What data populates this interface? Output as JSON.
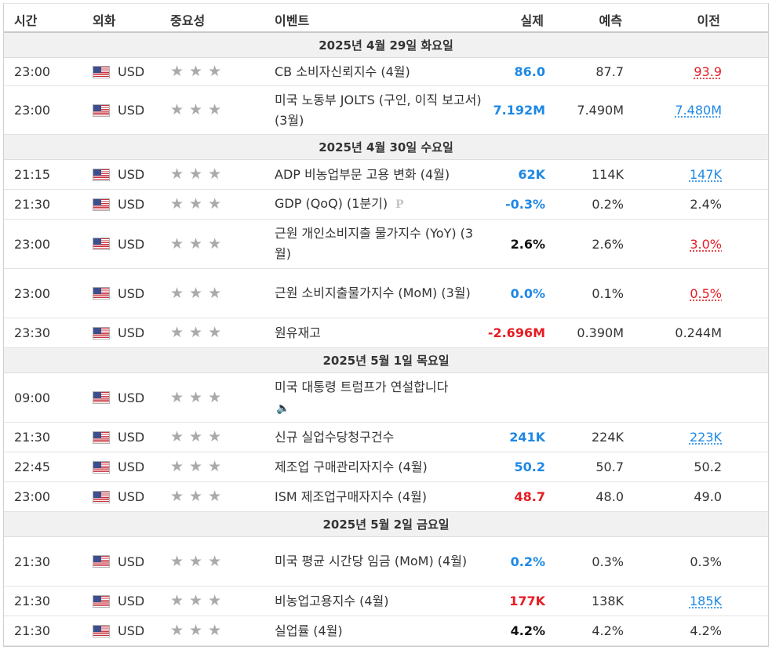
{
  "headers": {
    "time": "시간",
    "currency": "외화",
    "importance": "중요성",
    "event": "이벤트",
    "actual": "실제",
    "forecast": "예측",
    "previous": "이전"
  },
  "colors": {
    "positive": "#1e88e5",
    "negative": "#e51c23",
    "neutral": "#111111"
  },
  "days": [
    {
      "label": "2025년 4월 29일 화요일",
      "rows": [
        {
          "time": "23:00",
          "currency": "USD",
          "stars": 3,
          "event": "CB 소비자신뢰지수 (4월)",
          "actual": "86.0",
          "actual_color": "blue",
          "forecast": "87.7",
          "previous": "93.9",
          "previous_style": "und-red"
        },
        {
          "time": "23:00",
          "currency": "USD",
          "stars": 3,
          "event": "미국 노동부 JOLTS (구인, 이직 보고서) (3월)",
          "actual": "7.192M",
          "actual_color": "blue",
          "forecast": "7.490M",
          "previous": "7.480M",
          "previous_style": "und-blue"
        }
      ]
    },
    {
      "label": "2025년 4월 30일 수요일",
      "rows": [
        {
          "time": "21:15",
          "currency": "USD",
          "stars": 3,
          "event": "ADP 비농업부문 고용 변화 (4월)",
          "actual": "62K",
          "actual_color": "blue",
          "forecast": "114K",
          "previous": "147K",
          "previous_style": "und-blue"
        },
        {
          "time": "21:30",
          "currency": "USD",
          "stars": 3,
          "event": "GDP (QoQ) (1분기)",
          "badge": "P",
          "actual": "-0.3%",
          "actual_color": "blue",
          "forecast": "0.2%",
          "previous": "2.4%",
          "previous_style": "plain"
        },
        {
          "time": "23:00",
          "currency": "USD",
          "stars": 3,
          "event": "근원 개인소비지출 물가지수 (YoY) (3월)",
          "actual": "2.6%",
          "actual_color": "black",
          "forecast": "2.6%",
          "previous": "3.0%",
          "previous_style": "und-red"
        },
        {
          "time": "23:00",
          "currency": "USD",
          "stars": 3,
          "event": "근원 소비지출물가지수 (MoM) (3월)",
          "actual": "0.0%",
          "actual_color": "blue",
          "forecast": "0.1%",
          "previous": "0.5%",
          "previous_style": "und-red"
        },
        {
          "time": "23:30",
          "currency": "USD",
          "stars": 3,
          "event": "원유재고",
          "actual": "-2.696M",
          "actual_color": "red",
          "forecast": "0.390M",
          "previous": "0.244M",
          "previous_style": "plain"
        }
      ]
    },
    {
      "label": "2025년 5월 1일 목요일",
      "rows": [
        {
          "time": "09:00",
          "currency": "USD",
          "stars": 3,
          "event": "미국 대통령 트럼프가 연설합니다",
          "speaker": true,
          "actual": "",
          "actual_color": "black",
          "forecast": "",
          "previous": "",
          "previous_style": "plain"
        },
        {
          "time": "21:30",
          "currency": "USD",
          "stars": 3,
          "event": "신규 실업수당청구건수",
          "actual": "241K",
          "actual_color": "blue",
          "forecast": "224K",
          "previous": "223K",
          "previous_style": "und-blue"
        },
        {
          "time": "22:45",
          "currency": "USD",
          "stars": 3,
          "event": "제조업 구매관리자지수 (4월)",
          "actual": "50.2",
          "actual_color": "blue",
          "forecast": "50.7",
          "previous": "50.2",
          "previous_style": "plain"
        },
        {
          "time": "23:00",
          "currency": "USD",
          "stars": 3,
          "event": "ISM 제조업구매자지수 (4월)",
          "actual": "48.7",
          "actual_color": "red",
          "forecast": "48.0",
          "previous": "49.0",
          "previous_style": "plain"
        }
      ]
    },
    {
      "label": "2025년 5월 2일 금요일",
      "rows": [
        {
          "time": "21:30",
          "currency": "USD",
          "stars": 3,
          "event": "미국 평균 시간당 임금 (MoM) (4월)",
          "actual": "0.2%",
          "actual_color": "blue",
          "forecast": "0.3%",
          "previous": "0.3%",
          "previous_style": "plain"
        },
        {
          "time": "21:30",
          "currency": "USD",
          "stars": 3,
          "event": "비농업고용지수 (4월)",
          "actual": "177K",
          "actual_color": "red",
          "forecast": "138K",
          "previous": "185K",
          "previous_style": "und-blue"
        },
        {
          "time": "21:30",
          "currency": "USD",
          "stars": 3,
          "event": "실업률 (4월)",
          "actual": "4.2%",
          "actual_color": "black",
          "forecast": "4.2%",
          "previous": "4.2%",
          "previous_style": "plain"
        }
      ]
    }
  ]
}
